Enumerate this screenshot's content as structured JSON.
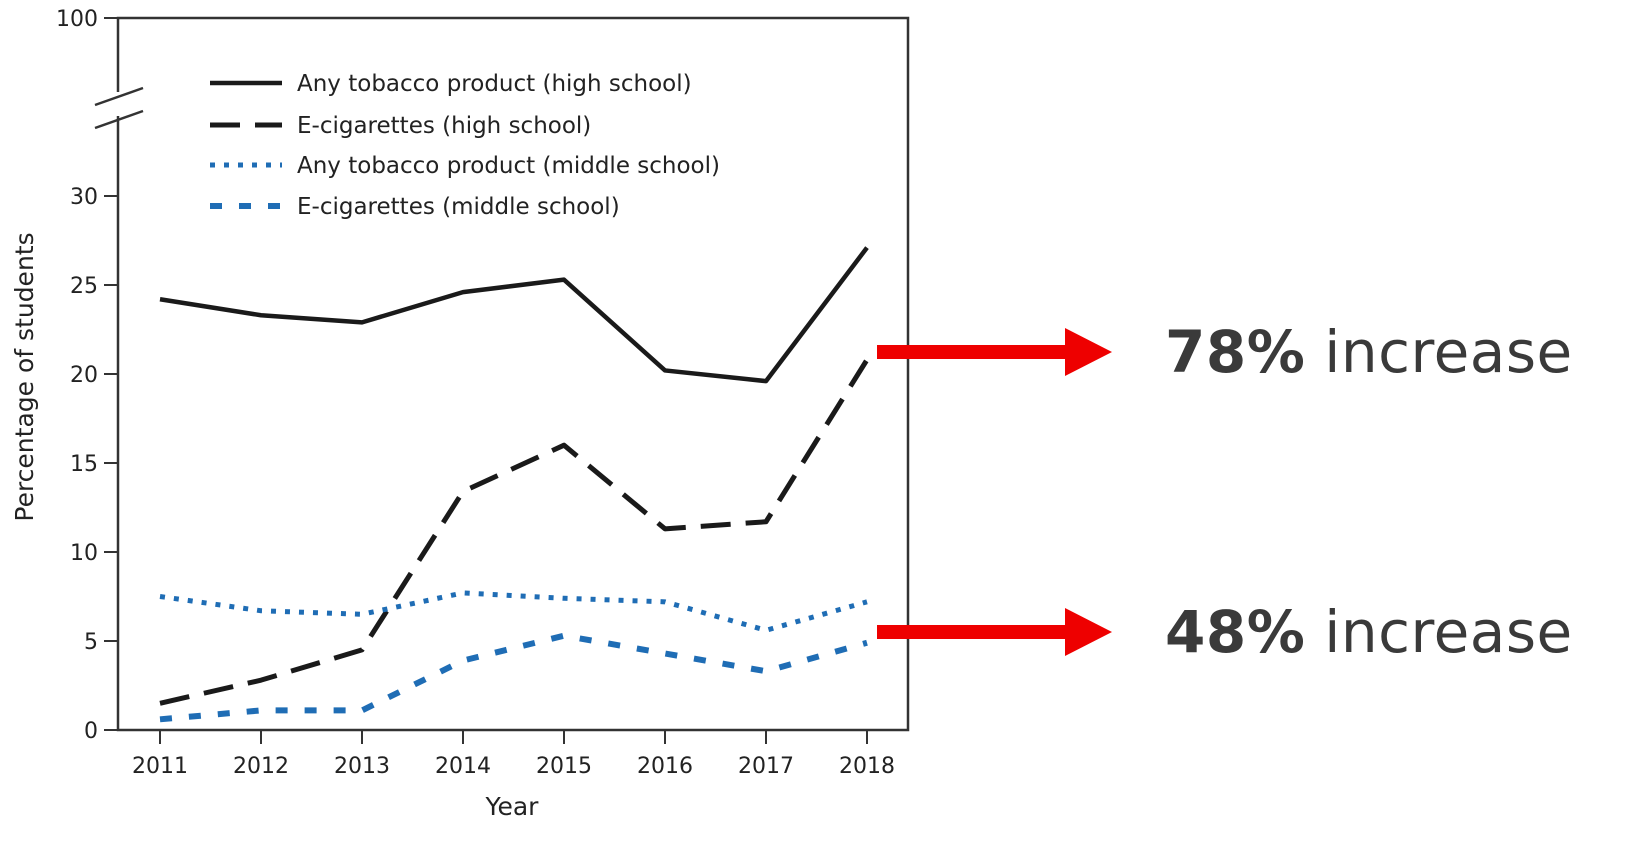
{
  "chart_data": {
    "type": "line",
    "xlabel": "Year",
    "ylabel": "Percentage of students",
    "ylim": [
      0,
      30
    ],
    "y_break_top_label": "100",
    "y_ticks": [
      "0",
      "5",
      "10",
      "15",
      "20",
      "25",
      "30"
    ],
    "categories": [
      "2011",
      "2012",
      "2013",
      "2014",
      "2015",
      "2016",
      "2017",
      "2018"
    ],
    "legend_position": "top-left",
    "series": [
      {
        "name": "Any tobacco product (high school)",
        "color": "#1a1a1a",
        "style": "solid",
        "values": [
          24.2,
          23.3,
          22.9,
          24.6,
          25.3,
          20.2,
          19.6,
          27.1
        ]
      },
      {
        "name": "E-cigarettes (high school)",
        "color": "#1a1a1a",
        "style": "dashed",
        "values": [
          1.5,
          2.8,
          4.5,
          13.4,
          16.0,
          11.3,
          11.7,
          20.8
        ]
      },
      {
        "name": "Any tobacco product (middle school)",
        "color": "#1f6db5",
        "style": "dotted",
        "values": [
          7.5,
          6.7,
          6.5,
          7.7,
          7.4,
          7.2,
          5.6,
          7.2
        ]
      },
      {
        "name": "E-cigarettes (middle school)",
        "color": "#1f6db5",
        "style": "blue-dashed",
        "values": [
          0.6,
          1.1,
          1.1,
          3.9,
          5.3,
          4.3,
          3.3,
          4.9
        ]
      }
    ]
  },
  "annotations": [
    {
      "value": "78%",
      "suffix": " increase",
      "arrow_color": "#ee0000"
    },
    {
      "value": "48%",
      "suffix": " increase",
      "arrow_color": "#ee0000"
    }
  ]
}
